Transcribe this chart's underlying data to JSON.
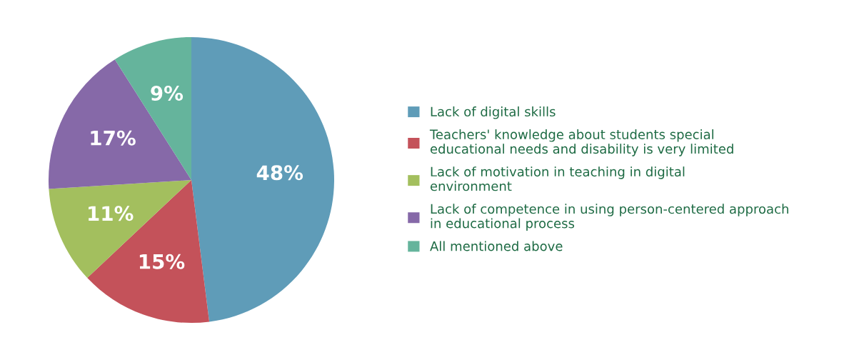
{
  "chart_data": {
    "type": "pie",
    "categories": [
      "Lack of digital skills",
      "Teachers' knowledge about students special educational needs and disability is very limited",
      "Lack of motivation in teaching in digital environment",
      "Lack of competence in using person-centered approach in educational process",
      "All mentioned above"
    ],
    "values": [
      48,
      15,
      11,
      17,
      9
    ],
    "colors": [
      "#5f9cb8",
      "#c4525a",
      "#a3bf5e",
      "#8669a8",
      "#65b49c"
    ],
    "value_labels": [
      "48%",
      "15%",
      "11%",
      "17%",
      "9%"
    ],
    "legend": "right"
  }
}
